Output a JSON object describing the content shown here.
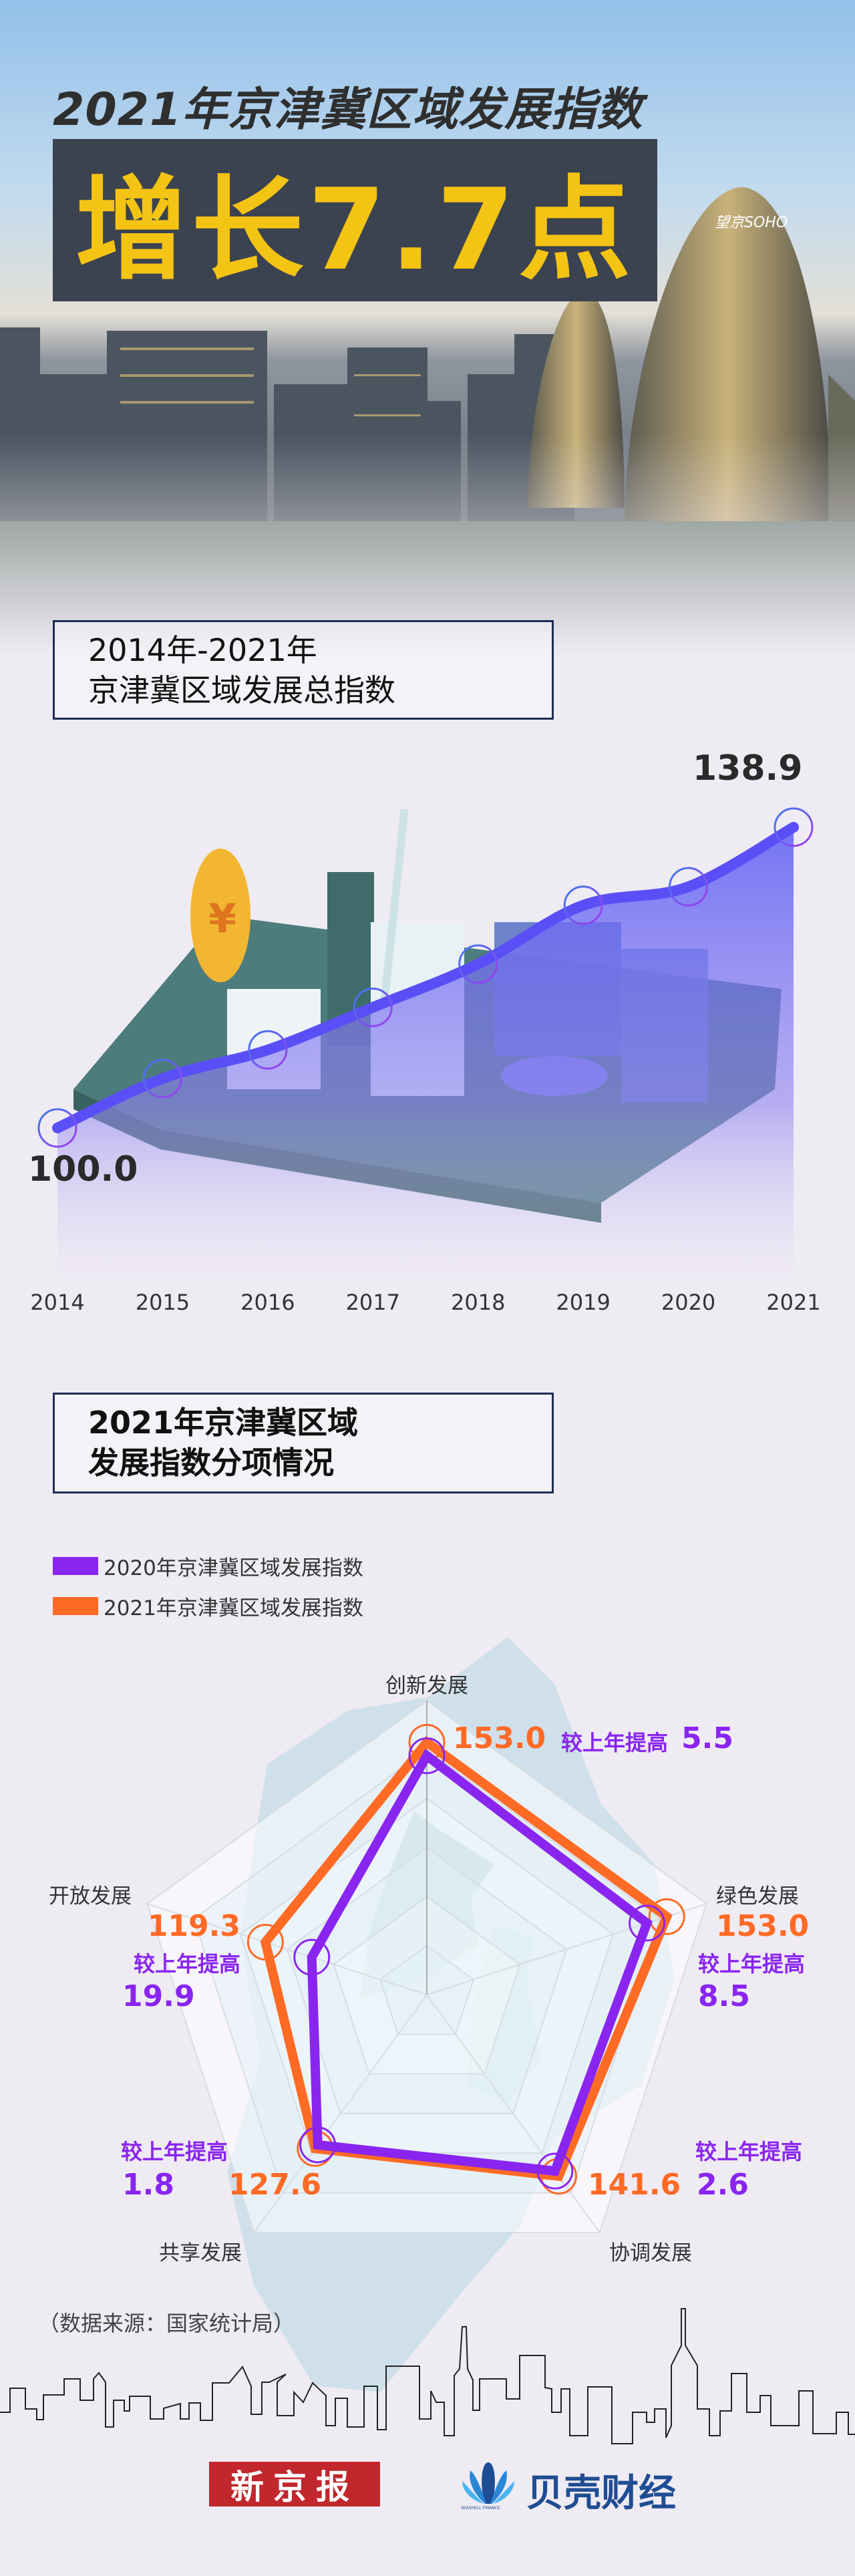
{
  "header": {
    "title": "2021年京津冀区域发展指数",
    "headline": "增长7.7点"
  },
  "section1": {
    "title_line1": "2014年-2021年",
    "title_line2": "京津冀区域发展总指数"
  },
  "section2": {
    "title_line1": "2021年京津冀区域",
    "title_line2": "发展指数分项情况"
  },
  "chart_data": [
    {
      "type": "line",
      "x": [
        "2014",
        "2015",
        "2016",
        "2017",
        "2018",
        "2019",
        "2020",
        "2021"
      ],
      "values": [
        100.0,
        106.4,
        110.1,
        115.6,
        121.2,
        128.8,
        131.2,
        138.9
      ],
      "data_labels": {
        "first": "100.0",
        "last": "138.9"
      },
      "line_color": "#5a4ff6",
      "fill_color": "#6b6ff5",
      "grid": false
    },
    {
      "type": "radar",
      "axes": [
        "创新发展",
        "绿色发展",
        "协调发展",
        "共享发展",
        "开放发展"
      ],
      "range": [
        50,
        170
      ],
      "rings": 6,
      "series": [
        {
          "name": "2020年京津冀区域发展指数",
          "values": [
            147.5,
            144.5,
            139.0,
            125.8,
            99.4
          ],
          "color": "#8a25f0"
        },
        {
          "name": "2021年京津冀区域发展指数",
          "values": [
            153.0,
            153.0,
            141.6,
            127.6,
            119.3
          ],
          "color": "#ff6a25"
        }
      ],
      "value_labels": [
        "153.0",
        "153.0",
        "141.6",
        "127.6",
        "119.3"
      ],
      "increase_label": "较上年提高",
      "increases": [
        "5.5",
        "8.5",
        "2.6",
        "1.8",
        "19.9"
      ],
      "legend_position": "top-left"
    }
  ],
  "source": "（数据来源：国家统计局）",
  "logos": {
    "xinjingbao": "新京报",
    "beike": "贝壳财经",
    "beike_en": "SEASHELL FINANCE"
  },
  "icons": [
    "yuan-coin-illustration",
    "city-skyline",
    "seashell-logo"
  ]
}
